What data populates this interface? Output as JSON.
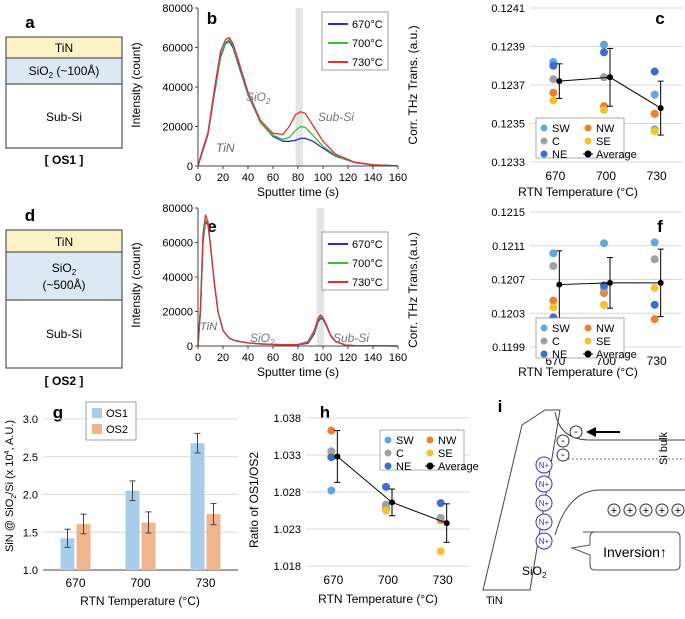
{
  "panel_labels": {
    "a": "a",
    "b": "b",
    "c": "c",
    "d": "d",
    "e": "e",
    "f": "f",
    "g": "g",
    "h": "h",
    "i": "i"
  },
  "stack_a": {
    "top": "TiN",
    "mid_main": "SiO",
    "mid_sub": "2",
    "mid_rest": " (~100Å)",
    "bottom": "Sub-Si",
    "caption": "[ OS1 ]"
  },
  "stack_d": {
    "top": "TiN",
    "mid_main": "SiO",
    "mid_sub": "2",
    "mid_rest": "(~500Å)",
    "bottom": "Sub-Si",
    "caption": "[ OS2 ]"
  },
  "colors": {
    "c670": "#2b2bd6",
    "c700": "#33c133",
    "c730": "#e03030",
    "SW": "#5ea8e0",
    "NW": "#f07f2e",
    "C": "#a0a0a0",
    "SE": "#f2c22c",
    "NE": "#3d6fc9",
    "Average": "#000000",
    "OS1": "#a7cdea",
    "OS2": "#f0b58c",
    "tin": "#fbf3c6",
    "sio2": "#dce9f4"
  },
  "chart_data": [
    {
      "id": "b",
      "type": "line",
      "title": "",
      "xlabel": "Sputter time (s)",
      "ylabel": "Intensity (count)",
      "xlim": [
        0,
        160
      ],
      "ylim": [
        0,
        80000
      ],
      "xticks": [
        "0",
        "20",
        "40",
        "60",
        "80",
        "100",
        "120",
        "140",
        "160"
      ],
      "yticks": [
        "0",
        "20000",
        "40000",
        "60000",
        "80000"
      ],
      "annotations": {
        "tin": "TiN",
        "sio2_main": "SiO",
        "sio2_sub": "2",
        "subsi": "Sub-Si"
      },
      "shade": [
        78,
        84
      ],
      "legend": [
        "670°C",
        "700°C",
        "730°C"
      ],
      "series": [
        {
          "name": "670°C",
          "x": [
            0,
            3,
            8,
            13,
            18,
            22,
            25,
            28,
            33,
            40,
            50,
            60,
            68,
            73,
            78,
            82,
            86,
            92,
            100,
            110,
            125,
            140,
            160
          ],
          "y": [
            0,
            6000,
            16000,
            36000,
            55000,
            62000,
            63000,
            60000,
            50000,
            36000,
            22000,
            15000,
            12500,
            12500,
            13000,
            14000,
            14000,
            12500,
            9000,
            5000,
            1800,
            500,
            100
          ]
        },
        {
          "name": "700°C",
          "x": [
            0,
            3,
            8,
            13,
            18,
            22,
            25,
            28,
            33,
            40,
            50,
            60,
            68,
            73,
            78,
            82,
            86,
            92,
            100,
            110,
            125,
            140,
            160
          ],
          "y": [
            0,
            6500,
            16500,
            37000,
            56000,
            62500,
            64000,
            61000,
            51000,
            36500,
            22000,
            15500,
            13500,
            14500,
            18000,
            20000,
            19500,
            15500,
            10000,
            5300,
            1900,
            500,
            100
          ]
        },
        {
          "name": "730°C",
          "x": [
            0,
            3,
            8,
            13,
            18,
            22,
            25,
            28,
            33,
            40,
            50,
            60,
            68,
            73,
            78,
            82,
            86,
            92,
            100,
            110,
            125,
            140,
            160
          ],
          "y": [
            0,
            7000,
            17000,
            38500,
            58000,
            64000,
            65000,
            62000,
            52000,
            37500,
            23000,
            16500,
            16000,
            20000,
            26000,
            27500,
            26500,
            20500,
            12500,
            6000,
            2000,
            600,
            100
          ]
        }
      ]
    },
    {
      "id": "c",
      "type": "scatter",
      "xlabel": "RTN Temperature (°C)",
      "ylabel": "Corr. THz Trans. (a.u.)",
      "ylim": [
        0.1233,
        0.1241
      ],
      "yticks": [
        "0.1233",
        "0.1235",
        "0.1237",
        "0.1239",
        "0.1241"
      ],
      "categories": [
        "670",
        "700",
        "730"
      ],
      "series": [
        {
          "name": "SW",
          "values": [
            0.12382,
            0.12391,
            0.12365
          ]
        },
        {
          "name": "NW",
          "values": [
            0.12366,
            0.12359,
            0.12355
          ]
        },
        {
          "name": "C",
          "values": [
            0.12373,
            0.12374,
            0.12347
          ]
        },
        {
          "name": "SE",
          "values": [
            0.12362,
            0.12357,
            0.12346
          ]
        },
        {
          "name": "NE",
          "values": [
            0.1238,
            0.12387,
            0.12377
          ]
        },
        {
          "name": "Average",
          "values": [
            0.12372,
            0.12374,
            0.12358
          ],
          "err": [
            9e-05,
            0.00015,
            0.00014
          ]
        }
      ]
    },
    {
      "id": "e",
      "type": "line",
      "xlabel": "Sputter time (s)",
      "ylabel": "Intensity (count)",
      "xlim": [
        0,
        160
      ],
      "ylim": [
        0,
        80000
      ],
      "xticks": [
        "0",
        "20",
        "40",
        "60",
        "80",
        "100",
        "120",
        "140",
        "160"
      ],
      "yticks": [
        "0",
        "20000",
        "40000",
        "60000",
        "80000"
      ],
      "annotations": {
        "tin": "TiN",
        "sio2_main": "SiO",
        "sio2_sub": "2",
        "subsi": "Sub-Si"
      },
      "shade": [
        95,
        101
      ],
      "legend": [
        "670°C",
        "700°C",
        "730°C"
      ],
      "series": [
        {
          "name": "670°C",
          "x": [
            0,
            2,
            4,
            6,
            8,
            10,
            13,
            16,
            20,
            25,
            30,
            40,
            50,
            60,
            70,
            80,
            88,
            93,
            96,
            98,
            100,
            103,
            106,
            110,
            118,
            125,
            140,
            160
          ],
          "y": [
            0,
            20000,
            60000,
            72000,
            70000,
            58000,
            37000,
            20000,
            9000,
            4500,
            3000,
            1800,
            1200,
            900,
            700,
            700,
            1500,
            7000,
            14000,
            16000,
            15500,
            11000,
            6000,
            2500,
            500,
            200,
            100,
            0
          ]
        },
        {
          "name": "700°C",
          "x": [
            0,
            2,
            4,
            6,
            8,
            10,
            13,
            16,
            20,
            25,
            30,
            40,
            50,
            60,
            70,
            80,
            88,
            93,
            96,
            98,
            100,
            103,
            106,
            110,
            118,
            125,
            140,
            160
          ],
          "y": [
            0,
            21000,
            62000,
            73000,
            71000,
            58000,
            37000,
            20000,
            9000,
            4500,
            3000,
            1800,
            1200,
            900,
            700,
            800,
            2000,
            8000,
            15000,
            17000,
            16000,
            11500,
            6200,
            2600,
            500,
            200,
            100,
            0
          ]
        },
        {
          "name": "730°C",
          "x": [
            0,
            2,
            4,
            6,
            8,
            10,
            13,
            16,
            20,
            25,
            30,
            40,
            50,
            60,
            70,
            80,
            88,
            93,
            96,
            98,
            100,
            103,
            106,
            110,
            118,
            125,
            140,
            160
          ],
          "y": [
            0,
            23000,
            65000,
            76000,
            72000,
            58000,
            37000,
            20000,
            9000,
            4500,
            3000,
            1800,
            1200,
            900,
            700,
            900,
            2500,
            9000,
            16000,
            18000,
            16500,
            12000,
            6500,
            2800,
            600,
            200,
            100,
            0
          ]
        }
      ]
    },
    {
      "id": "f",
      "type": "scatter",
      "xlabel": "RTN Temperature (°C)",
      "ylabel": "Corr. THz Trans.(a.u.)",
      "ylim": [
        0.1199,
        0.1215
      ],
      "yticks": [
        "0.1199",
        "0.1203",
        "0.1207",
        "0.1211",
        "0.1215"
      ],
      "categories": [
        "670",
        "700",
        "730"
      ],
      "series": [
        {
          "name": "SW",
          "values": [
            0.12101,
            0.12113,
            0.12114
          ]
        },
        {
          "name": "NW",
          "values": [
            0.12045,
            0.12054,
            0.12023
          ]
        },
        {
          "name": "C",
          "values": [
            0.12086,
            0.12059,
            0.12094
          ]
        },
        {
          "name": "SE",
          "values": [
            0.12037,
            0.1204,
            0.1206
          ]
        },
        {
          "name": "NE",
          "values": [
            0.12025,
            0.12063,
            0.1204
          ]
        },
        {
          "name": "Average",
          "values": [
            0.12064,
            0.12066,
            0.12066
          ],
          "err": [
            0.0004,
            0.0003,
            0.0004
          ]
        }
      ]
    },
    {
      "id": "g",
      "type": "bar",
      "xlabel": "RTN Temperature (°C)",
      "ylabel_parts": {
        "a": "SiN @ SiO",
        "b": "2",
        "c": "/Si (x 10",
        "d": "4",
        "e": ", A.U.)"
      },
      "ylim": [
        1.0,
        3.0
      ],
      "yticks": [
        "1.0",
        "1.5",
        "2.0",
        "2.5",
        "3.0"
      ],
      "categories": [
        "670",
        "700",
        "730"
      ],
      "series": [
        {
          "name": "OS1",
          "values": [
            1.42,
            2.05,
            2.68
          ],
          "err": [
            0.12,
            0.13,
            0.13
          ]
        },
        {
          "name": "OS2",
          "values": [
            1.61,
            1.63,
            1.74
          ],
          "err": [
            0.13,
            0.14,
            0.14
          ]
        }
      ]
    },
    {
      "id": "h",
      "type": "scatter",
      "xlabel": "RTN Temperature (°C)",
      "ylabel": "Ratio of OS1/OS2",
      "ylim": [
        1.018,
        1.038
      ],
      "yticks": [
        "1.018",
        "1.023",
        "1.028",
        "1.033",
        "1.038"
      ],
      "categories": [
        "670",
        "700",
        "730"
      ],
      "series": [
        {
          "name": "SW",
          "values": [
            1.0282,
            1.0258,
            1.0245
          ]
        },
        {
          "name": "NW",
          "values": [
            1.0363,
            1.0258,
            1.0242
          ]
        },
        {
          "name": "C",
          "values": [
            1.0335,
            1.0263,
            1.0245
          ]
        },
        {
          "name": "SE",
          "values": [
            1.0328,
            1.0255,
            1.02
          ]
        },
        {
          "name": "NE",
          "values": [
            1.0327,
            1.0287,
            1.0265
          ]
        },
        {
          "name": "Average",
          "values": [
            1.0328,
            1.0266,
            1.0238
          ],
          "err": [
            0.0035,
            0.0018,
            0.0026
          ]
        }
      ]
    }
  ],
  "diagram_i": {
    "tin": "TiN",
    "sio2_main": "SiO",
    "sio2_sub": "2",
    "si_bulk": "Si bulk",
    "nplus": "N+",
    "minus": "-",
    "plus": "+",
    "inversion": "Inversion↑"
  }
}
